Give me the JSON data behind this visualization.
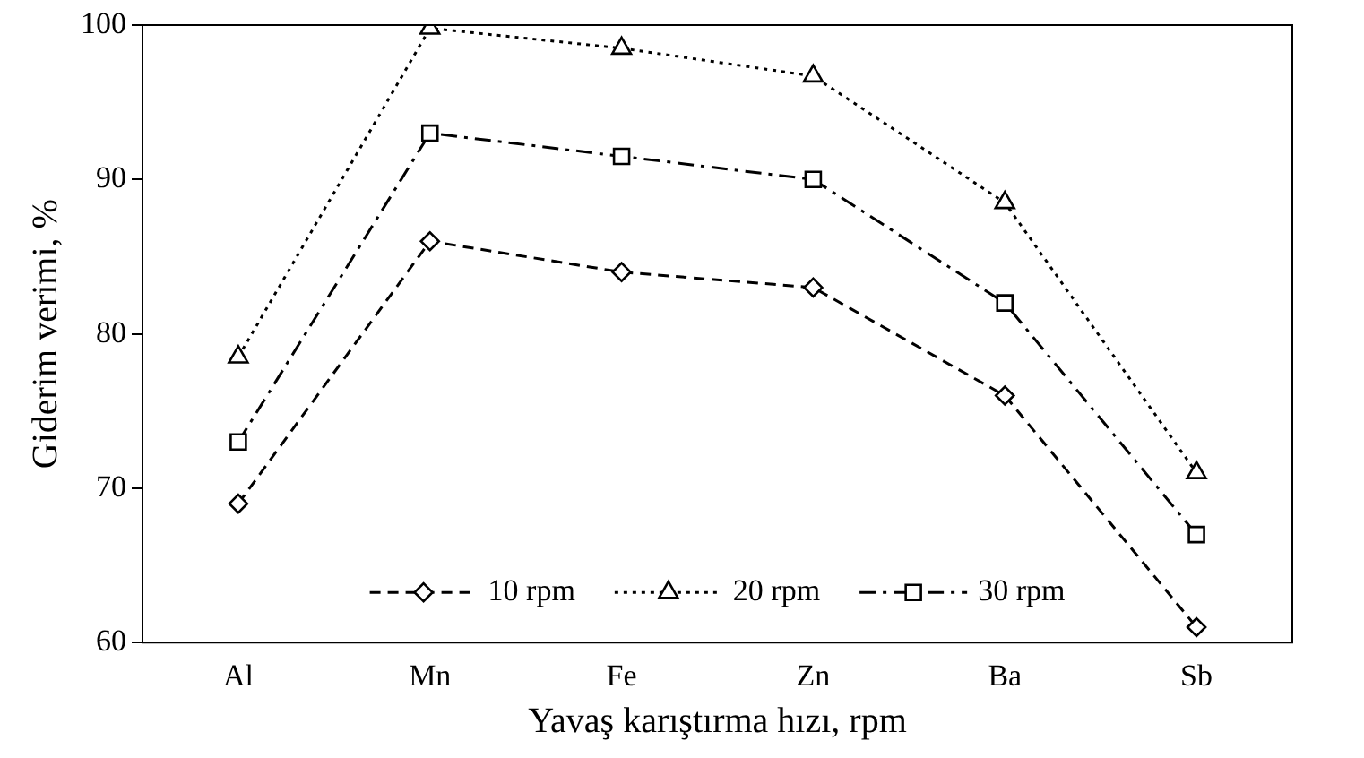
{
  "chart_data": {
    "type": "line",
    "xlabel": "Yavaş karıştırma hızı, rpm",
    "ylabel": "Giderim verimi, %",
    "categories": [
      "Al",
      "Mn",
      "Fe",
      "Zn",
      "Ba",
      "Sb"
    ],
    "series": [
      {
        "name": "10 rpm",
        "color": "#000000",
        "values": [
          69,
          86,
          84,
          83,
          76,
          61
        ],
        "marker": "diamond",
        "line_style": "dashed"
      },
      {
        "name": "20 rpm",
        "color": "#000000",
        "values": [
          78.5,
          99.8,
          98.5,
          96.7,
          88.5,
          71
        ],
        "marker": "triangle",
        "line_style": "dotted"
      },
      {
        "name": "30 rpm",
        "color": "#000000",
        "values": [
          73,
          93,
          91.5,
          90,
          82,
          67
        ],
        "marker": "square",
        "line_style": "dashdot"
      }
    ],
    "ylim": [
      60,
      100
    ],
    "yticks": [
      60,
      70,
      80,
      90,
      100
    ],
    "grid": false,
    "legend": "bottom"
  }
}
